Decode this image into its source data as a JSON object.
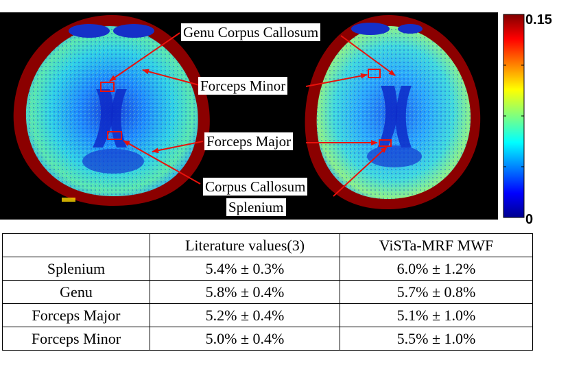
{
  "colorbar": {
    "max_label": "0.15",
    "min_label": "0",
    "colormap": "jet"
  },
  "annotations": {
    "genu": "Genu Corpus Callosum",
    "forceps_minor": "Forceps Minor",
    "forceps_major": "Forceps Major",
    "splenium_line1": "Corpus Callosum",
    "splenium_line2": "Splenium"
  },
  "colors": {
    "arrow": "#e8120c",
    "skull": "#8b0000",
    "background": "#000000"
  },
  "table": {
    "headers": [
      "",
      "Literature values(3)",
      "ViSTa-MRF MWF"
    ],
    "rows": [
      [
        "Splenium",
        "5.4% ± 0.3%",
        "6.0% ± 1.2%"
      ],
      [
        "Genu",
        "5.8% ± 0.4%",
        "5.7% ± 0.8%"
      ],
      [
        "Forceps Major",
        "5.2% ± 0.4%",
        "5.1% ± 1.0%"
      ],
      [
        "Forceps Minor",
        "5.0% ± 0.4%",
        "5.5% ± 1.0%"
      ]
    ]
  }
}
